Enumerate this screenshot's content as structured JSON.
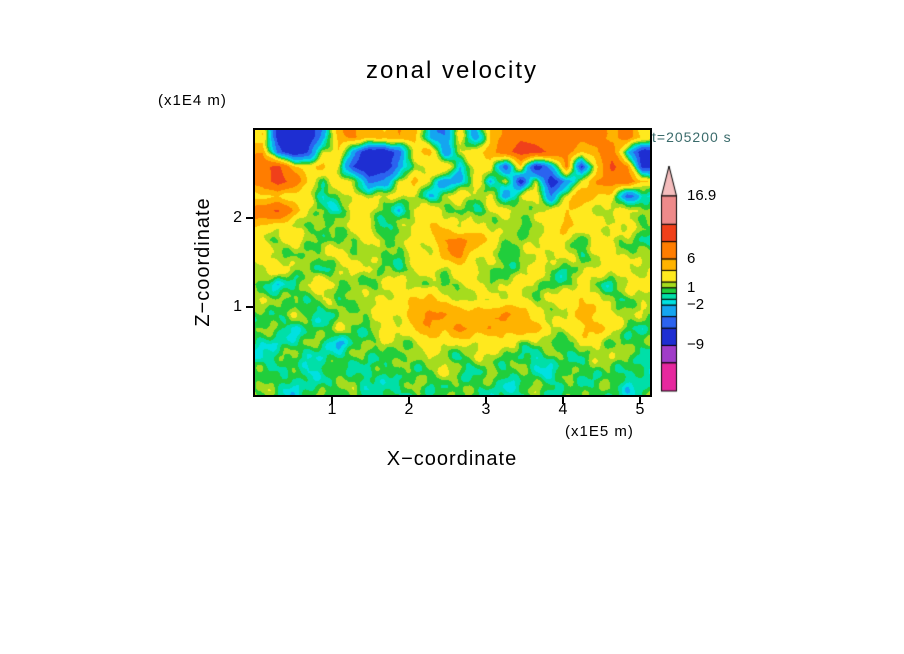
{
  "colors": {
    "background": "#FFFFFF",
    "text": "#000000",
    "time_label": "#3A6B6B",
    "axis_frame": "#000000"
  },
  "chart_data": {
    "type": "heatmap",
    "title": "zonal velocity",
    "time_annotation": "t=205200 s",
    "xlabel": "X−coordinate",
    "zlabel": "Z−coordinate",
    "x_units": "(x1E5 m)",
    "z_units": "(x1E4 m)",
    "x_range": [
      0,
      5.13
    ],
    "z_range": [
      0,
      3.0
    ],
    "x_ticks": [
      1,
      2,
      3,
      4,
      5
    ],
    "z_ticks": [
      1,
      2
    ],
    "levels": [
      -16.9,
      -12,
      -9,
      -6,
      -4,
      -2,
      -1,
      0,
      1,
      2,
      4,
      6,
      9,
      12,
      16.9
    ],
    "level_colors": [
      "#E6289E",
      "#A03CC8",
      "#1E2ED2",
      "#2B63EF",
      "#14A5F0",
      "#00E1E1",
      "#00DFA8",
      "#21CE3C",
      "#A5DC1E",
      "#FFE91E",
      "#FFB300",
      "#FF7D00",
      "#F0401A",
      "#EE8A8A"
    ],
    "over_color": "#F5BDBD",
    "colorbar": {
      "top_value": 16.9,
      "bottom_value": -16.9,
      "labels": [
        {
          "text": "16.9",
          "value": 16.9
        },
        {
          "text": "6",
          "value": 6
        },
        {
          "text": "1",
          "value": 1
        },
        {
          "text": "−2",
          "value": -2
        },
        {
          "text": "−9",
          "value": -9
        }
      ]
    },
    "grid": {
      "cols": 26,
      "rows": 18,
      "values": [
        [
          3,
          -7,
          -8.8,
          -8.5,
          -3,
          5,
          6.5,
          5,
          4,
          6,
          5,
          -2,
          -4,
          2,
          -3,
          4,
          7,
          8.5,
          8,
          7,
          8,
          6.5,
          7,
          5,
          8,
          3
        ],
        [
          6,
          -5,
          -8.6,
          -6,
          2,
          4,
          -4,
          -8.5,
          -8,
          -5,
          3,
          4.5,
          -3,
          2,
          3,
          5,
          8,
          10.5,
          10,
          8.5,
          7,
          4,
          6,
          8,
          -2,
          -7.5
        ],
        [
          8,
          10,
          5,
          3,
          4,
          2,
          -6,
          -8.8,
          -8.2,
          -4,
          2,
          3,
          4,
          -2,
          3,
          4,
          -6,
          3,
          -8,
          -3,
          7,
          -7,
          3,
          10,
          6.5,
          -7
        ],
        [
          7,
          10.5,
          8,
          4,
          1,
          3,
          2,
          -5,
          -3,
          2,
          4,
          2,
          -4,
          -2,
          3,
          -3,
          3,
          -7.5,
          2,
          -8.3,
          -4,
          3,
          6,
          7,
          8,
          4
        ],
        [
          3,
          4,
          3,
          2,
          -1,
          1,
          3,
          2,
          1,
          3,
          2,
          -2,
          1,
          3,
          2,
          3,
          -4,
          2,
          3,
          -3,
          2,
          6,
          4,
          3,
          -5,
          -2
        ],
        [
          8,
          9.5,
          6,
          2,
          1,
          -1,
          2,
          3,
          1,
          -2,
          2,
          3,
          2,
          1,
          -1,
          2,
          3,
          2,
          1,
          2,
          4.5,
          3,
          2,
          1,
          3,
          2
        ],
        [
          4,
          3,
          2,
          1,
          0,
          2,
          3,
          2,
          -1,
          1,
          3,
          4,
          3,
          2,
          3,
          2,
          1,
          0,
          2,
          3,
          5,
          3,
          2,
          3,
          2,
          1
        ],
        [
          2,
          1,
          3,
          2,
          1,
          0,
          1,
          3,
          2,
          1,
          2,
          3,
          6,
          7,
          5,
          3,
          2,
          1,
          2,
          3,
          2,
          1,
          3,
          2,
          1,
          0
        ],
        [
          3,
          2,
          1,
          0,
          2,
          3,
          2,
          1,
          0,
          1,
          3,
          2,
          5,
          6.5,
          3,
          2,
          0,
          1,
          2,
          3,
          2,
          0,
          2,
          3,
          2,
          1
        ],
        [
          2,
          3,
          2,
          1,
          0,
          1,
          2,
          3,
          1,
          0,
          2,
          3,
          2,
          3,
          2,
          1,
          0,
          2,
          3,
          1,
          0,
          2,
          3,
          2,
          3,
          2
        ],
        [
          1,
          -2,
          0,
          2,
          3,
          2,
          1,
          0,
          2,
          3,
          2,
          1,
          0,
          2,
          3,
          2,
          1,
          3,
          2,
          0,
          1,
          2,
          1,
          0,
          2,
          3
        ],
        [
          2,
          1,
          0,
          1,
          2,
          0,
          1,
          2,
          3,
          2,
          4,
          5,
          3,
          2,
          1,
          2,
          3,
          2,
          1,
          2,
          3,
          4.5,
          2,
          1,
          0,
          2
        ],
        [
          0,
          1,
          2,
          0,
          -1,
          1,
          2,
          1,
          2,
          3,
          5,
          6.5,
          6,
          5,
          6,
          5,
          6.5,
          5,
          3,
          2,
          1,
          5,
          4,
          3,
          2,
          1
        ],
        [
          1,
          0,
          -1,
          0,
          1,
          2,
          0,
          1,
          3,
          2,
          4,
          6,
          5,
          6.5,
          5,
          6,
          5,
          6,
          4,
          2,
          3,
          4,
          5,
          2,
          1,
          0
        ],
        [
          0,
          -1,
          0,
          1,
          0,
          -2,
          0,
          1,
          2,
          1,
          2,
          3,
          2,
          3,
          2,
          3,
          2,
          1,
          2,
          1,
          0,
          2,
          3,
          1,
          0,
          1
        ],
        [
          -1,
          0,
          1,
          0,
          -1,
          0,
          1,
          0,
          1,
          0,
          1,
          2.5,
          1,
          0,
          1,
          2,
          1,
          0,
          -1,
          0,
          1,
          0,
          1,
          2,
          1,
          0
        ],
        [
          0.5,
          1,
          0,
          -1.5,
          0,
          1,
          0,
          -1,
          0,
          1.5,
          0,
          1,
          2,
          1,
          0,
          1,
          0,
          1,
          0,
          -1,
          0,
          1,
          0,
          1,
          0,
          -1
        ],
        [
          1,
          0,
          -1,
          0,
          1,
          0,
          1.5,
          0,
          -1,
          0,
          1,
          0,
          1,
          0,
          1,
          0,
          -1,
          0,
          1,
          0,
          1,
          0,
          1,
          0,
          -1,
          0
        ]
      ]
    }
  }
}
